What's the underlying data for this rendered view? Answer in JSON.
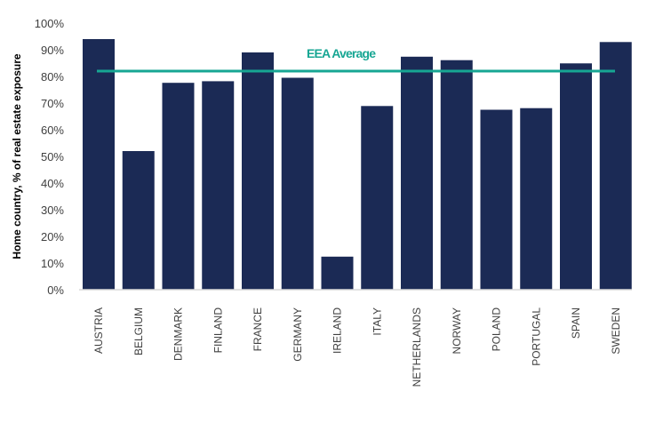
{
  "chart_data": {
    "type": "bar",
    "title": "",
    "xlabel": "",
    "ylabel": "Home country, % of real estate exposure",
    "ylim": [
      0,
      100
    ],
    "yticks": [
      "0%",
      "10%",
      "20%",
      "30%",
      "40%",
      "50%",
      "60%",
      "70%",
      "80%",
      "90%",
      "100%"
    ],
    "grid": false,
    "categories": [
      "AUSTRIA",
      "BELGIUM",
      "DENMARK",
      "FINLAND",
      "FRANCE",
      "GERMANY",
      "IRELAND",
      "ITALY",
      "NETHERLANDS",
      "NORWAY",
      "POLAND",
      "PORTUGAL",
      "SPAIN",
      "SWEDEN"
    ],
    "values": [
      94,
      52,
      77.6,
      78.2,
      89,
      79.5,
      12.4,
      68.9,
      87.4,
      86.1,
      67.5,
      68.1,
      84.9,
      92.9
    ],
    "reference_line": {
      "label": "EEA Average",
      "value": 82
    },
    "colors": {
      "bar": "#1b2a55",
      "reference": "#17a693",
      "axis": "#d9d9d9",
      "text": "#404040"
    }
  }
}
